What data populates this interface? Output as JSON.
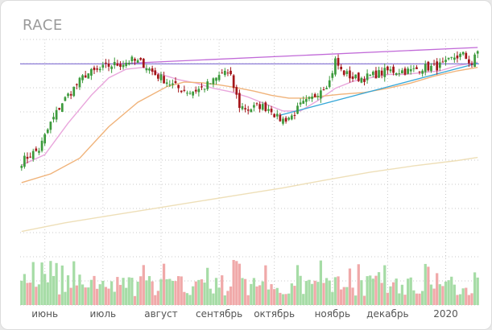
{
  "ticker": "RACE",
  "colors": {
    "up": "#3c9a3c",
    "down": "#a4161a",
    "grid": "#c8c8c8",
    "ma_short": "#e9a6dc",
    "ma_mid": "#f0b37a",
    "ma_long": "#eedfb8",
    "hline": "#8c7ad6",
    "trend_res": "#c16ad8",
    "trend_sup": "#35a7d8",
    "vol_up": "#a6dca6",
    "vol_down": "#f0a9a9"
  },
  "chart_data": {
    "type": "candlestick",
    "title": "RACE",
    "x_tick_labels": [
      "июнь",
      "июль",
      "август",
      "сентябрь",
      "октябрь",
      "ноябрь",
      "декабрь",
      "2020"
    ],
    "x_tick_index": [
      8,
      28,
      48,
      68,
      87,
      107,
      126,
      146
    ],
    "num_bars": 158,
    "ylim": [
      110,
      175
    ],
    "grid": true,
    "volume_panel": true,
    "anchors": [
      [
        0,
        140
      ],
      [
        3,
        142
      ],
      [
        6,
        143.5
      ],
      [
        10,
        151
      ],
      [
        14,
        157
      ],
      [
        18,
        161
      ],
      [
        22,
        165
      ],
      [
        26,
        166
      ],
      [
        30,
        167.5
      ],
      [
        34,
        168
      ],
      [
        38,
        169
      ],
      [
        42,
        168
      ],
      [
        46,
        165
      ],
      [
        50,
        163
      ],
      [
        54,
        161
      ],
      [
        58,
        160
      ],
      [
        62,
        161
      ],
      [
        66,
        163
      ],
      [
        70,
        166
      ],
      [
        72,
        164
      ],
      [
        75,
        156
      ],
      [
        78,
        155
      ],
      [
        82,
        156
      ],
      [
        86,
        155
      ],
      [
        88,
        152.5
      ],
      [
        90,
        152
      ],
      [
        93,
        153
      ],
      [
        96,
        156
      ],
      [
        100,
        158
      ],
      [
        103,
        161
      ],
      [
        106,
        163
      ],
      [
        108,
        169
      ],
      [
        110,
        166
      ],
      [
        114,
        164
      ],
      [
        118,
        164
      ],
      [
        122,
        165
      ],
      [
        126,
        166
      ],
      [
        130,
        166
      ],
      [
        134,
        166
      ],
      [
        138,
        167
      ],
      [
        142,
        167
      ],
      [
        146,
        168
      ],
      [
        149,
        170
      ],
      [
        152,
        170.5
      ],
      [
        155,
        168
      ],
      [
        157,
        171.5
      ]
    ],
    "moving_averages": [
      {
        "name": "MA short",
        "points": [
          [
            0,
            139
          ],
          [
            8,
            142
          ],
          [
            16,
            151
          ],
          [
            24,
            159
          ],
          [
            30,
            164
          ],
          [
            36,
            166.5
          ],
          [
            42,
            167
          ],
          [
            48,
            165
          ],
          [
            54,
            163.5
          ],
          [
            60,
            162.5
          ],
          [
            66,
            161
          ],
          [
            72,
            160
          ],
          [
            78,
            158.5
          ],
          [
            84,
            156.5
          ],
          [
            90,
            154.5
          ],
          [
            96,
            154.5
          ],
          [
            102,
            157.5
          ],
          [
            108,
            161
          ],
          [
            114,
            163
          ],
          [
            120,
            164
          ],
          [
            126,
            165
          ],
          [
            132,
            165
          ],
          [
            138,
            165.5
          ],
          [
            144,
            166
          ],
          [
            150,
            167.5
          ],
          [
            157,
            168.5
          ]
        ]
      },
      {
        "name": "MA mid",
        "points": [
          [
            0,
            134
          ],
          [
            10,
            136.5
          ],
          [
            20,
            141
          ],
          [
            30,
            150
          ],
          [
            40,
            157
          ],
          [
            50,
            161.5
          ],
          [
            56,
            162.8
          ],
          [
            62,
            162.6
          ],
          [
            68,
            162
          ],
          [
            74,
            161.2
          ],
          [
            80,
            160.2
          ],
          [
            86,
            159
          ],
          [
            92,
            158.2
          ],
          [
            98,
            158.2
          ],
          [
            104,
            158.8
          ],
          [
            110,
            159.3
          ],
          [
            118,
            159.8
          ],
          [
            126,
            161
          ],
          [
            134,
            162.5
          ],
          [
            142,
            164.5
          ],
          [
            150,
            166
          ],
          [
            157,
            167
          ]
        ]
      },
      {
        "name": "MA long",
        "points": [
          [
            0,
            120
          ],
          [
            15,
            122.5
          ],
          [
            30,
            124.5
          ],
          [
            45,
            126.5
          ],
          [
            60,
            128.5
          ],
          [
            75,
            130.5
          ],
          [
            90,
            132.5
          ],
          [
            105,
            134.8
          ],
          [
            120,
            137
          ],
          [
            135,
            138.8
          ],
          [
            150,
            140.3
          ],
          [
            157,
            141.2
          ]
        ]
      }
    ],
    "trendlines": [
      {
        "name": "horizontal level",
        "from": [
          0,
          168
        ],
        "to": [
          157,
          168
        ]
      },
      {
        "name": "resistance",
        "from": [
          32,
          168
        ],
        "to": [
          157,
          172.7
        ]
      },
      {
        "name": "support",
        "from": [
          89,
          153.3
        ],
        "to": [
          157,
          168.2
        ]
      }
    ]
  }
}
